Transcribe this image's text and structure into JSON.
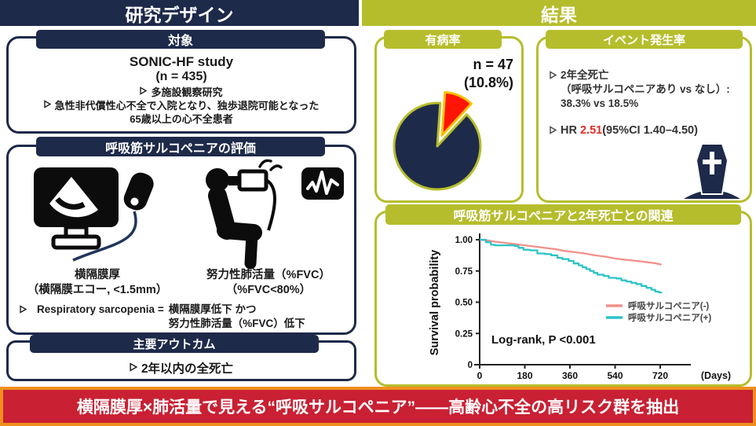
{
  "header": {
    "study_design": "研究デザイン",
    "results": "結果"
  },
  "study_design": {
    "subjects": {
      "title": "対象",
      "study_name": "SONIC-HF study",
      "n_line": "(n = 435)",
      "bullet1": "多施設観察研究",
      "bullet2_line1": "急性非代償性心不全で入院となり、独歩退院可能となった",
      "bullet2_line2": "65歳以上の心不全患者"
    },
    "evaluation": {
      "title": "呼吸筋サルコペニアの評価",
      "diaphragm_caption1": "横隔膜厚",
      "diaphragm_caption2": "（横隔膜エコー, <1.5mm）",
      "fvc_caption1": "努力性肺活量（%FVC）",
      "fvc_caption2": "（%FVC<80%）",
      "definition_label": "Respiratory sarcopenia =",
      "definition_line1": "横隔膜厚低下 かつ",
      "definition_line2": "努力性肺活量（%FVC）低下"
    },
    "outcome": {
      "title": "主要アウトカム",
      "bullet": "2年以内の全死亡"
    }
  },
  "results": {
    "prevalence": {
      "title": "有病率",
      "n_label": "n = 47",
      "pct_label": "(10.8%)"
    },
    "event_rate": {
      "title": "イベント発生率",
      "bullet1_line1": "2年全死亡",
      "bullet1_line2": "（呼吸サルコペニアあり vs なし）:",
      "bullet1_line3": "38.3% vs 18.5%",
      "hr_prefix": "HR ",
      "hr_value": "2.51",
      "hr_suffix": "(95%CI 1.40–4.50)"
    },
    "km": {
      "title": "呼吸筋サルコペニアと2年死亡との関連"
    }
  },
  "banner": {
    "text": "横隔膜厚×肺活量で見える“呼吸サルコペニア”——高齢心不全の高リスク群を抽出"
  },
  "palette": {
    "navy": "#1e2a4a",
    "olive": "#b6bd2c",
    "banner_red": "#c92033",
    "banner_orange": "#ef8f1f",
    "pie_slice_red": "#fe1505",
    "pie_slice_gold_outline": "#ffc000",
    "hr_red": "#e42b23",
    "km_pink": "#f2918a",
    "km_teal": "#2cc3c7"
  },
  "chart_data": [
    {
      "type": "pie",
      "annotation_n": "n = 47",
      "annotation_pct": "(10.8%)",
      "slices": [
        {
          "value": 10.8,
          "color": "#fe1505",
          "exploded": true,
          "outline": "#ffc000"
        },
        {
          "value": 89.2,
          "color": "#1e2a4a",
          "exploded": false,
          "outline": "#b6bd2c"
        }
      ]
    },
    {
      "type": "line",
      "title": "呼吸筋サルコペニアと2年死亡との関連",
      "xlabel": "(Days)",
      "ylabel": "Survival probability",
      "xlim": [
        0,
        760
      ],
      "ylim": [
        0,
        1.0
      ],
      "xticks": [
        0,
        180,
        360,
        540,
        720
      ],
      "xtick_labels": [
        "0",
        "180",
        "360",
        "540",
        "720"
      ],
      "yticks": [
        0,
        0.25,
        0.5,
        0.75,
        1.0
      ],
      "ytick_labels": [
        "0",
        "0.25",
        "0.50",
        "0.75",
        "1.00"
      ],
      "annotation": "Log-rank, P  <0.001",
      "legend_position": "right-middle",
      "grid": false,
      "series": [
        {
          "name": "呼吸サルコペニア(-)",
          "color": "#f2918a",
          "step": false,
          "x": [
            0,
            30,
            60,
            100,
            140,
            180,
            220,
            260,
            300,
            340,
            380,
            420,
            460,
            500,
            540,
            580,
            620,
            660,
            700,
            725
          ],
          "y": [
            1.0,
            0.995,
            0.985,
            0.975,
            0.965,
            0.955,
            0.945,
            0.935,
            0.925,
            0.91,
            0.9,
            0.89,
            0.875,
            0.865,
            0.85,
            0.84,
            0.832,
            0.822,
            0.812,
            0.8
          ]
        },
        {
          "name": "呼吸サルコペニア(+)",
          "color": "#2cc3c7",
          "step": true,
          "x": [
            0,
            25,
            45,
            60,
            140,
            155,
            175,
            200,
            230,
            260,
            285,
            310,
            330,
            355,
            375,
            395,
            410,
            425,
            440,
            455,
            470,
            495,
            515,
            545,
            565,
            585,
            605,
            625,
            645,
            665,
            685,
            700,
            715,
            725
          ],
          "y": [
            1.0,
            0.98,
            0.96,
            0.955,
            0.95,
            0.935,
            0.92,
            0.915,
            0.89,
            0.885,
            0.875,
            0.855,
            0.845,
            0.83,
            0.81,
            0.795,
            0.78,
            0.765,
            0.75,
            0.735,
            0.72,
            0.71,
            0.695,
            0.69,
            0.675,
            0.665,
            0.655,
            0.645,
            0.63,
            0.615,
            0.6,
            0.585,
            0.578,
            0.575
          ]
        }
      ]
    }
  ]
}
